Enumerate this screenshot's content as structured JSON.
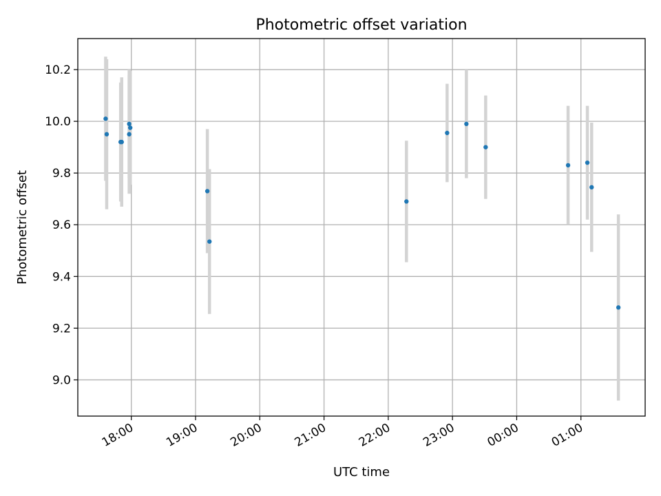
{
  "chart_data": {
    "type": "scatter",
    "title": "Photometric offset variation",
    "xlabel": "UTC time",
    "ylabel": "Photometric offset",
    "x_format": "HH:MM",
    "xlim": [
      "17:10",
      "02:00"
    ],
    "ylim": [
      8.86,
      10.32
    ],
    "xticks": [
      "18:00",
      "19:00",
      "20:00",
      "21:00",
      "22:00",
      "23:00",
      "00:00",
      "01:00"
    ],
    "yticks": [
      9.0,
      9.2,
      9.4,
      9.6,
      9.8,
      10.0,
      10.2
    ],
    "ytick_labels": [
      "9.0",
      "9.2",
      "9.4",
      "9.6",
      "9.8",
      "10.0",
      "10.2"
    ],
    "grid": true,
    "marker_color": "#1f77b4",
    "errorbar_color": "#d3d3d3",
    "points": [
      {
        "t": "17:36",
        "y": 10.01,
        "err": 0.24
      },
      {
        "t": "17:37",
        "y": 9.95,
        "err": 0.29
      },
      {
        "t": "17:50",
        "y": 9.92,
        "err": 0.23
      },
      {
        "t": "17:51",
        "y": 9.92,
        "err": 0.25
      },
      {
        "t": "17:58",
        "y": 9.99,
        "err": 0.21
      },
      {
        "t": "17:59",
        "y": 9.975,
        "err": 0.22
      },
      {
        "t": "17:58",
        "y": 9.95,
        "err": 0.23
      },
      {
        "t": "19:11",
        "y": 9.73,
        "err": 0.24
      },
      {
        "t": "19:13",
        "y": 9.535,
        "err": 0.28
      },
      {
        "t": "22:17",
        "y": 9.69,
        "err": 0.235
      },
      {
        "t": "22:55",
        "y": 9.955,
        "err": 0.19
      },
      {
        "t": "23:13",
        "y": 9.99,
        "err": 0.21
      },
      {
        "t": "23:31",
        "y": 9.9,
        "err": 0.2
      },
      {
        "t": "00:48",
        "y": 9.83,
        "err": 0.23
      },
      {
        "t": "01:06",
        "y": 9.84,
        "err": 0.22
      },
      {
        "t": "01:10",
        "y": 9.745,
        "err": 0.25
      },
      {
        "t": "01:35",
        "y": 9.28,
        "err": 0.36
      }
    ]
  }
}
